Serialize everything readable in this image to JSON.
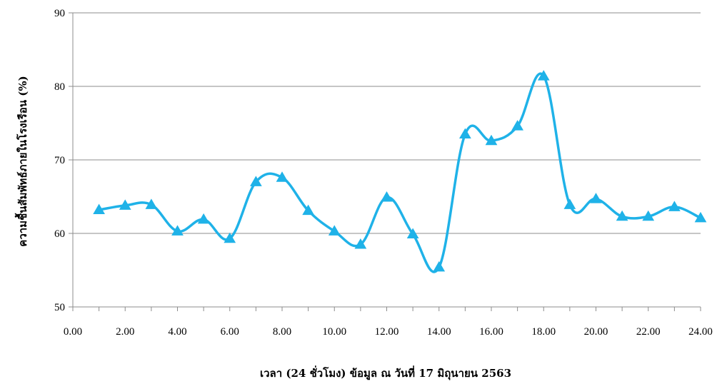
{
  "chart_data": {
    "type": "line",
    "title": "",
    "xlabel": "เวลา (24 ชั่วโมง) ข้อมูล ณ วันที่ 17 มิถุนายน 2563",
    "ylabel": "ความชื้นสัมพัทธ์ภายในโรงเรือน (%)",
    "xlim": [
      0,
      24
    ],
    "ylim": [
      50,
      90
    ],
    "x_ticks": [
      0,
      2,
      4,
      6,
      8,
      10,
      12,
      14,
      16,
      18,
      20,
      22,
      24
    ],
    "x_tick_labels": [
      "0.00",
      "2.00",
      "4.00",
      "6.00",
      "8.00",
      "10.00",
      "12.00",
      "14.00",
      "16.00",
      "18.00",
      "20.00",
      "22.00",
      "24.00"
    ],
    "y_ticks": [
      50,
      60,
      70,
      80,
      90
    ],
    "y_tick_labels": [
      "50",
      "60",
      "70",
      "80",
      "90"
    ],
    "grid": "horizontal",
    "legend": "none",
    "marker": "triangle",
    "line_style": "smooth",
    "series": [
      {
        "color": "#1fb2e8",
        "x": [
          1,
          2,
          3,
          4,
          5,
          6,
          7,
          8,
          9,
          10,
          11,
          12,
          13,
          14,
          15,
          16,
          17,
          18,
          19,
          20,
          21,
          22,
          23,
          24
        ],
        "values": [
          63.2,
          63.8,
          63.9,
          60.3,
          61.9,
          59.3,
          67.0,
          67.6,
          63.1,
          60.3,
          58.5,
          64.9,
          59.9,
          55.4,
          73.5,
          72.6,
          74.6,
          81.4,
          63.9,
          64.7,
          62.3,
          62.3,
          63.6,
          62.1
        ]
      }
    ]
  }
}
